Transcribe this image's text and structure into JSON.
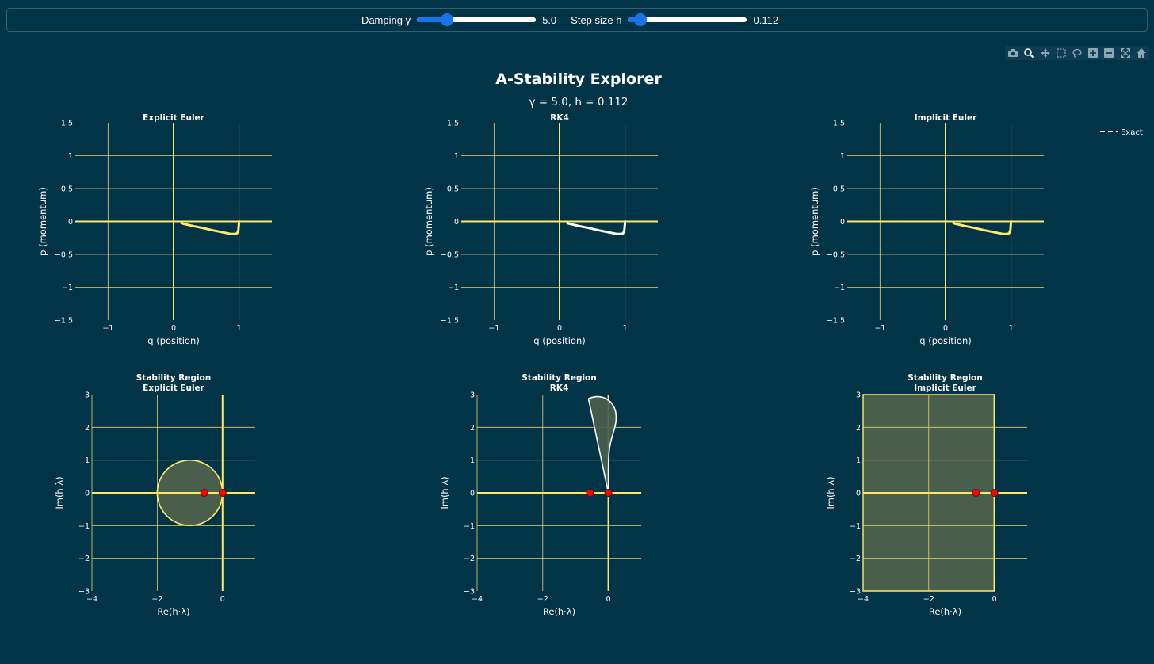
{
  "controls": {
    "damping": {
      "label": "Damping γ",
      "value_text": "5.0",
      "value": 5.0,
      "min": 0,
      "max": 20
    },
    "step": {
      "label": "Step size h",
      "value_text": "0.112",
      "value": 0.112,
      "min": 0.01,
      "max": 1.0
    }
  },
  "modebar": [
    "camera-icon",
    "zoom-icon",
    "pan-icon",
    "box-select-icon",
    "lasso-icon",
    "zoom-in-icon",
    "zoom-out-icon",
    "autoscale-icon",
    "reset-axes-icon"
  ],
  "figure": {
    "title": "A-Stability Explorer",
    "subtitle": "γ = 5.0, h = 0.112",
    "legend_label": "Exact",
    "colors": {
      "bg": "#023447",
      "grid": "#e8d26a",
      "accent": "#ffe96b",
      "white": "#ffffff",
      "region_fill": "#4a5e4c",
      "pole": "#ff0000"
    }
  },
  "chart_data": [
    {
      "type": "line",
      "title": "Explicit Euler",
      "xlabel": "q (position)",
      "ylabel": "p (momentum)",
      "xlim": [
        -1.5,
        1.5
      ],
      "ylim": [
        -1.5,
        1.5
      ],
      "xticks": [
        -1,
        0,
        1
      ],
      "xticklabels": [
        "−1",
        "0",
        "1"
      ],
      "yticks": [
        -1.5,
        -1,
        -0.5,
        0,
        0.5,
        1,
        1.5
      ],
      "yticklabels": [
        "−1.5",
        "−1",
        "−0.5",
        "0",
        "0.5",
        "1",
        "1.5"
      ],
      "series": [
        {
          "name": "Explicit Euler",
          "color": "#ffe96b",
          "x": [
            1.0,
            0.99,
            0.97,
            0.94,
            0.88,
            0.75,
            0.6,
            0.45,
            0.3,
            0.15,
            0.12
          ],
          "y": [
            0.0,
            -0.13,
            -0.18,
            -0.19,
            -0.19,
            -0.165,
            -0.135,
            -0.1,
            -0.07,
            -0.035,
            -0.025
          ]
        }
      ]
    },
    {
      "type": "line",
      "title": "RK4",
      "xlabel": "q (position)",
      "ylabel": "p (momentum)",
      "xlim": [
        -1.5,
        1.5
      ],
      "ylim": [
        -1.5,
        1.5
      ],
      "xticks": [
        -1,
        0,
        1
      ],
      "xticklabels": [
        "−1",
        "0",
        "1"
      ],
      "yticks": [
        -1.5,
        -1,
        -0.5,
        0,
        0.5,
        1,
        1.5
      ],
      "yticklabels": [
        "−1.5",
        "−1",
        "−0.5",
        "0",
        "0.5",
        "1",
        "1.5"
      ],
      "series": [
        {
          "name": "RK4",
          "color": "#ffffff",
          "x": [
            1.0,
            0.99,
            0.97,
            0.94,
            0.88,
            0.75,
            0.6,
            0.45,
            0.3,
            0.15,
            0.12
          ],
          "y": [
            0.0,
            -0.13,
            -0.18,
            -0.19,
            -0.19,
            -0.165,
            -0.135,
            -0.1,
            -0.07,
            -0.035,
            -0.025
          ]
        }
      ]
    },
    {
      "type": "line",
      "title": "Implicit Euler",
      "xlabel": "q (position)",
      "ylabel": "p (momentum)",
      "xlim": [
        -1.5,
        1.5
      ],
      "ylim": [
        -1.5,
        1.5
      ],
      "xticks": [
        -1,
        0,
        1
      ],
      "xticklabels": [
        "−1",
        "0",
        "1"
      ],
      "yticks": [
        -1.5,
        -1,
        -0.5,
        0,
        0.5,
        1,
        1.5
      ],
      "yticklabels": [
        "−1.5",
        "−1",
        "−0.5",
        "0",
        "0.5",
        "1",
        "1.5"
      ],
      "series": [
        {
          "name": "Implicit Euler",
          "color": "#ffe96b",
          "x": [
            1.0,
            0.99,
            0.97,
            0.94,
            0.88,
            0.75,
            0.6,
            0.45,
            0.3,
            0.15,
            0.12
          ],
          "y": [
            0.0,
            -0.13,
            -0.18,
            -0.19,
            -0.19,
            -0.165,
            -0.135,
            -0.1,
            -0.07,
            -0.035,
            -0.025
          ]
        }
      ]
    },
    {
      "type": "area",
      "title": "Stability Region",
      "subtitle": "Explicit Euler",
      "region": "euler-disk",
      "xlabel": "Re(h·λ)",
      "ylabel": "Im(h·λ)",
      "xlim": [
        -4,
        1
      ],
      "ylim": [
        -3,
        3
      ],
      "xticks": [
        -4,
        -2,
        0
      ],
      "xticklabels": [
        "−4",
        "−2",
        "0"
      ],
      "yticks": [
        -3,
        -2,
        -1,
        0,
        1,
        2,
        3
      ],
      "yticklabels": [
        "−3",
        "−2",
        "−1",
        "0",
        "1",
        "2",
        "3"
      ],
      "points": [
        {
          "x": -0.56,
          "y": 0
        },
        {
          "x": 0,
          "y": 0
        }
      ]
    },
    {
      "type": "area",
      "title": "Stability Region",
      "subtitle": "RK4",
      "region": "rk4",
      "xlabel": "Re(h·λ)",
      "ylabel": "Im(h·λ)",
      "xlim": [
        -4,
        1
      ],
      "ylim": [
        -3,
        3
      ],
      "xticks": [
        -4,
        -2,
        0
      ],
      "xticklabels": [
        "−4",
        "−2",
        "0"
      ],
      "yticks": [
        -3,
        -2,
        -1,
        0,
        1,
        2,
        3
      ],
      "yticklabels": [
        "−3",
        "−2",
        "−1",
        "0",
        "1",
        "2",
        "3"
      ],
      "points": [
        {
          "x": -0.56,
          "y": 0
        },
        {
          "x": 0,
          "y": 0
        }
      ]
    },
    {
      "type": "area",
      "title": "Stability Region",
      "subtitle": "Implicit Euler",
      "region": "left-half-plane",
      "xlabel": "Re(h·λ)",
      "ylabel": "Im(h·λ)",
      "xlim": [
        -4,
        1
      ],
      "ylim": [
        -3,
        3
      ],
      "xticks": [
        -4,
        -2,
        0
      ],
      "xticklabels": [
        "−4",
        "−2",
        "0"
      ],
      "yticks": [
        -3,
        -2,
        -1,
        0,
        1,
        2,
        3
      ],
      "yticklabels": [
        "−3",
        "−2",
        "−1",
        "0",
        "1",
        "2",
        "3"
      ],
      "points": [
        {
          "x": -0.56,
          "y": 0
        },
        {
          "x": 0,
          "y": 0
        }
      ]
    }
  ]
}
